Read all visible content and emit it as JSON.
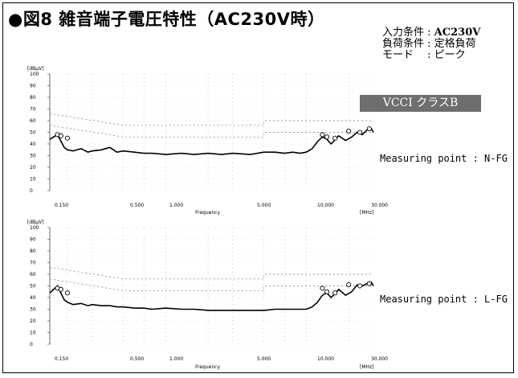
{
  "title": "●図8 雑音端子電圧特性（AC230V時）",
  "conditions": [
    {
      "label": "入力条件",
      "value": "AC230V"
    },
    {
      "label": "負荷条件",
      "value": "定格負荷"
    },
    {
      "label": "モード",
      "value": "ピーク"
    }
  ],
  "badge": "VCCI クラスB",
  "chart_data": [
    {
      "type": "line",
      "name": "Measuring point : N-FG",
      "y_unit_label": "[dBμV]",
      "xlabel": "Frequency",
      "x_unit_label": "[MHz]",
      "x_scale": "log",
      "xlim": [
        0.15,
        30
      ],
      "ylim": [
        0,
        100
      ],
      "x_ticks": [
        "0.150",
        "0.500",
        "1.000",
        "5.000",
        "10.000",
        "30.000"
      ],
      "y_ticks": [
        "100",
        "90",
        "80",
        "70",
        "60",
        "50",
        "40",
        "30",
        "20",
        "10",
        "0"
      ],
      "limits": {
        "quasi_peak": {
          "x": [
            0.15,
            0.5,
            0.5,
            5,
            5,
            30
          ],
          "y": [
            66,
            56,
            56,
            56,
            60,
            60
          ]
        },
        "average": {
          "x": [
            0.15,
            0.5,
            0.5,
            5,
            5,
            30
          ],
          "y": [
            56,
            46,
            46,
            46,
            50,
            50
          ]
        }
      },
      "series": [
        {
          "x": [
            0.15,
            0.17,
            0.19,
            0.2,
            0.22,
            0.25,
            0.28,
            0.3,
            0.35,
            0.4,
            0.45,
            0.5,
            0.6,
            0.7,
            0.8,
            1.0,
            1.3,
            1.6,
            2.0,
            2.5,
            3.0,
            4.0,
            5.0,
            6.0,
            7.0,
            8.0,
            9.0,
            10.0,
            11.0,
            12.0,
            13.0,
            14.0,
            15.0,
            17.0,
            19.0,
            21.0,
            23.0,
            25.0,
            27.0,
            29.0,
            30.0
          ],
          "y": [
            44,
            48,
            37,
            35,
            34,
            36,
            33,
            34,
            35,
            37,
            33,
            34,
            33,
            32,
            32,
            31,
            32,
            31,
            32,
            31,
            32,
            31,
            33,
            33,
            32,
            33,
            32,
            33,
            36,
            42,
            46,
            44,
            40,
            47,
            43,
            46,
            50,
            48,
            52,
            53,
            50
          ]
        }
      ],
      "markers": {
        "x": [
          0.17,
          0.18,
          0.2,
          13.0,
          14.0,
          16.0,
          20.0,
          24.0,
          28.0
        ],
        "y": [
          48,
          47,
          45,
          48,
          46,
          45,
          51,
          50,
          53
        ]
      }
    },
    {
      "type": "line",
      "name": "Measuring point : L-FG",
      "y_unit_label": "[dBμV]",
      "xlabel": "Frequency",
      "x_unit_label": "[MHz]",
      "x_scale": "log",
      "xlim": [
        0.15,
        30
      ],
      "ylim": [
        0,
        100
      ],
      "x_ticks": [
        "0.150",
        "0.500",
        "1.000",
        "5.000",
        "10.000",
        "30.000"
      ],
      "y_ticks": [
        "100",
        "90",
        "80",
        "70",
        "60",
        "50",
        "40",
        "30",
        "20",
        "10",
        "0"
      ],
      "limits": {
        "quasi_peak": {
          "x": [
            0.15,
            0.5,
            0.5,
            5,
            5,
            30
          ],
          "y": [
            66,
            56,
            56,
            56,
            60,
            60
          ]
        },
        "average": {
          "x": [
            0.15,
            0.5,
            0.5,
            5,
            5,
            30
          ],
          "y": [
            56,
            46,
            46,
            46,
            50,
            50
          ]
        }
      },
      "series": [
        {
          "x": [
            0.15,
            0.17,
            0.19,
            0.2,
            0.22,
            0.25,
            0.28,
            0.3,
            0.35,
            0.4,
            0.45,
            0.5,
            0.6,
            0.7,
            0.8,
            1.0,
            1.3,
            1.6,
            2.0,
            2.5,
            3.0,
            4.0,
            5.0,
            6.0,
            7.0,
            8.0,
            9.0,
            10.0,
            11.0,
            12.0,
            13.0,
            14.0,
            15.0,
            17.0,
            19.0,
            21.0,
            23.0,
            25.0,
            27.0,
            29.0,
            30.0
          ],
          "y": [
            44,
            50,
            38,
            36,
            34,
            35,
            33,
            34,
            33,
            33,
            32,
            32,
            31,
            31,
            30,
            31,
            30,
            30,
            29,
            29,
            29,
            29,
            29,
            30,
            30,
            30,
            30,
            30,
            32,
            36,
            42,
            44,
            40,
            47,
            42,
            45,
            51,
            50,
            52,
            53,
            50
          ]
        }
      ],
      "markers": {
        "x": [
          0.17,
          0.18,
          0.2,
          13.0,
          14.0,
          16.0,
          20.0,
          24.0,
          28.0
        ],
        "y": [
          48,
          47,
          44,
          48,
          45,
          44,
          51,
          50,
          52
        ]
      }
    }
  ]
}
